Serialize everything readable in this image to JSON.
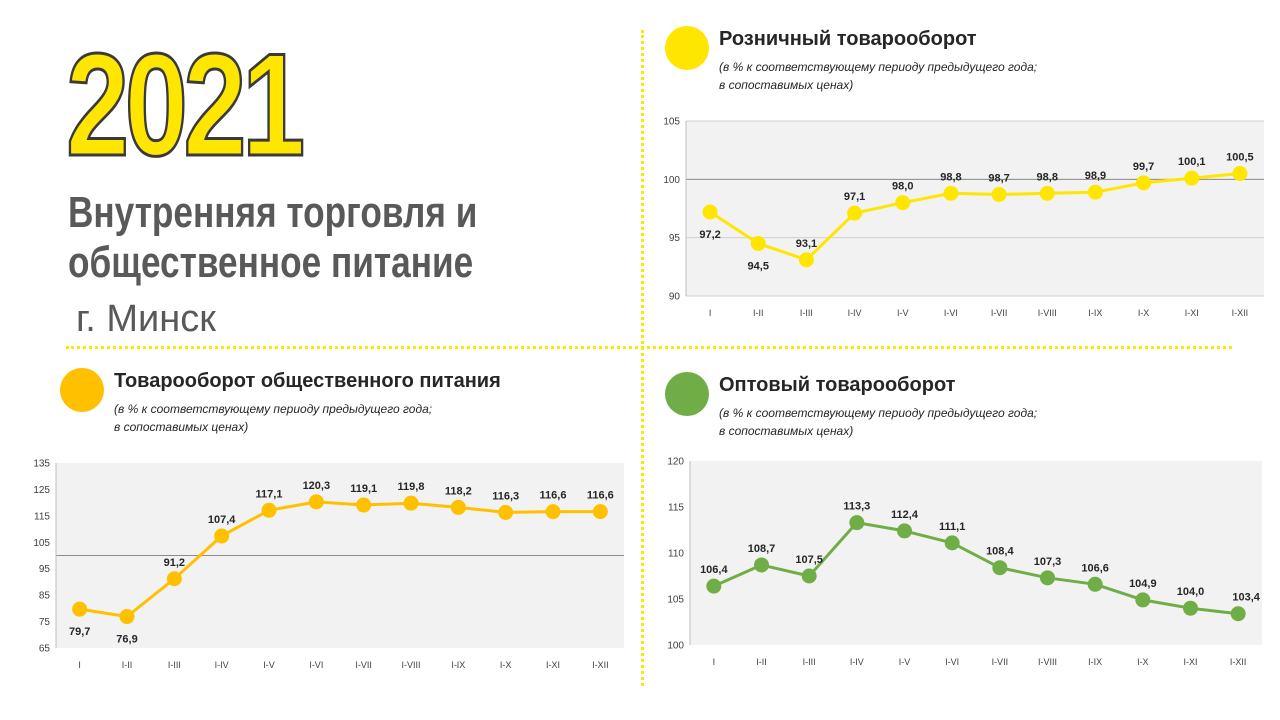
{
  "header": {
    "year": "2021",
    "title_line1": "Внутренняя торговля и",
    "title_line2": "общественное питание",
    "city": "г. Минск"
  },
  "colors": {
    "retail": "#ffe600",
    "catering": "#ffc000",
    "wholesale": "#70ad47",
    "plot_bg": "#f2f2f2"
  },
  "panels": {
    "retail": {
      "title": "Розничный товарооборот",
      "note_line1": "(в % к соответствующему периоду предыдущего года;",
      "note_line2": "в сопоставимых ценах)"
    },
    "catering": {
      "title": "Товарооборот общественного питания",
      "note_line1": "(в % к соответствующему периоду предыдущего года;",
      "note_line2": "в сопоставимых ценах)"
    },
    "wholesale": {
      "title": "Оптовый товарооборот",
      "note_line1": "(в % к соответствующему периоду предыдущего года;",
      "note_line2": "в сопоставимых ценах)"
    }
  },
  "chart_data": [
    {
      "type": "line",
      "categories": [
        "I",
        "I-II",
        "I-III",
        "I-IV",
        "I-V",
        "I-VI",
        "I-VII",
        "I-VIII",
        "I-IX",
        "I-X",
        "I-XI",
        "I-XII"
      ],
      "values": [
        97.2,
        94.5,
        93.1,
        97.1,
        98.0,
        98.8,
        98.7,
        98.8,
        98.9,
        99.7,
        100.1,
        100.5
      ],
      "data_labels": [
        "97,2",
        "94,5",
        "93,1",
        "97,1",
        "98,0",
        "98,8",
        "98,7",
        "98,8",
        "98,9",
        "99,7",
        "100,1",
        "100,5"
      ],
      "ylim": [
        90,
        105
      ],
      "yticks": [
        "90",
        "95",
        "100",
        "105"
      ],
      "grid": true,
      "reference_line": 100,
      "color": "#ffe600"
    },
    {
      "type": "line",
      "categories": [
        "I",
        "I-II",
        "I-III",
        "I-IV",
        "I-V",
        "I-VI",
        "I-VII",
        "I-VIII",
        "I-IX",
        "I-X",
        "I-XI",
        "I-XII"
      ],
      "values": [
        79.7,
        76.9,
        91.2,
        107.4,
        117.1,
        120.3,
        119.1,
        119.8,
        118.2,
        116.3,
        116.6,
        116.6
      ],
      "data_labels": [
        "79,7",
        "76,9",
        "91,2",
        "107,4",
        "117,1",
        "120,3",
        "119,1",
        "119,8",
        "118,2",
        "116,3",
        "116,6",
        "116,6"
      ],
      "ylim": [
        65,
        135
      ],
      "yticks": [
        "65",
        "75",
        "85",
        "95",
        "105",
        "115",
        "125",
        "135"
      ],
      "grid": false,
      "reference_line": 100,
      "color": "#ffc000"
    },
    {
      "type": "line",
      "categories": [
        "I",
        "I-II",
        "I-III",
        "I-IV",
        "I-V",
        "I-VI",
        "I-VII",
        "I-VIII",
        "I-IX",
        "I-X",
        "I-XI",
        "I-XII"
      ],
      "values": [
        106.4,
        108.7,
        107.5,
        113.3,
        112.4,
        111.1,
        108.4,
        107.3,
        106.6,
        104.9,
        104.0,
        103.4
      ],
      "data_labels": [
        "106,4",
        "108,7",
        "107,5",
        "113,3",
        "112,4",
        "111,1",
        "108,4",
        "107,3",
        "106,6",
        "104,9",
        "104,0",
        "103,4"
      ],
      "ylim": [
        100,
        120
      ],
      "yticks": [
        "100",
        "105",
        "110",
        "115",
        "120"
      ],
      "grid": false,
      "reference_line": null,
      "color": "#70ad47"
    }
  ]
}
